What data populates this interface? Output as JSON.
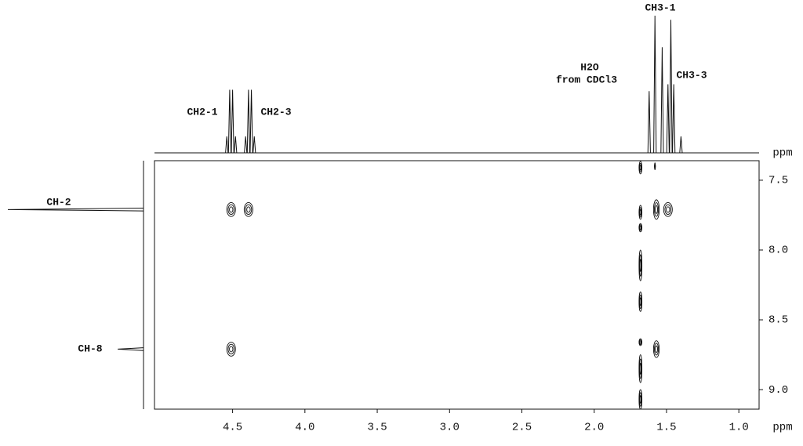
{
  "chart_data": {
    "type": "contour",
    "x_label": "ppm",
    "y_label": "ppm",
    "xlim": [
      5.04,
      0.86
    ],
    "ylim": [
      7.36,
      9.14
    ],
    "xticks": [
      4.5,
      {
        "value": 4,
        "label": "4.0"
      },
      3.5,
      {
        "value": 3,
        "label": "3.0"
      },
      2.5,
      {
        "value": 2,
        "label": "2.0"
      },
      1.5,
      {
        "value": 1,
        "label": "1.0"
      }
    ],
    "yticks": [
      7.5,
      {
        "value": 8,
        "label": "8.0"
      },
      8.5,
      {
        "value": 9,
        "label": "9.0"
      }
    ],
    "color": "#111111",
    "top_projection": {
      "ppm": [
        4.54,
        4.52,
        4.5,
        4.48,
        4.41,
        4.39,
        4.37,
        4.35,
        1.62,
        1.58,
        1.53,
        1.49,
        1.47,
        1.45,
        1.4
      ],
      "intensity": [
        12,
        46,
        46,
        12,
        12,
        46,
        46,
        12,
        45,
        100,
        77,
        50,
        97,
        50,
        12
      ]
    },
    "left_projection": {
      "ppm": [
        7.71,
        8.71
      ],
      "intensity": [
        100,
        19
      ]
    },
    "annotations": [
      "CH2-1",
      "CH2-3",
      "H2O",
      "from CDCl3",
      "CH3-1",
      "CH3-3",
      "CH-2",
      "CH-8"
    ],
    "cross_peaks": {
      "x": [
        4.51,
        4.39,
        4.51,
        1.57,
        1.49,
        1.57,
        1.58,
        1.68,
        1.68,
        1.68,
        1.68,
        1.68,
        1.68,
        1.68,
        1.68
      ],
      "y": [
        7.71,
        7.71,
        8.71,
        7.71,
        7.71,
        8.71,
        7.4,
        7.41,
        7.73,
        7.84,
        8.11,
        8.37,
        8.66,
        8.85,
        9.07
      ],
      "x_width": [
        0.06,
        0.06,
        0.06,
        0.04,
        0.06,
        0.04,
        0.006,
        0.02,
        0.02,
        0.02,
        0.02,
        0.02,
        0.02,
        0.02,
        0.02
      ],
      "y_width": [
        0.1,
        0.1,
        0.1,
        0.14,
        0.1,
        0.12,
        0.05,
        0.09,
        0.1,
        0.06,
        0.22,
        0.14,
        0.05,
        0.2,
        0.14
      ]
    }
  }
}
